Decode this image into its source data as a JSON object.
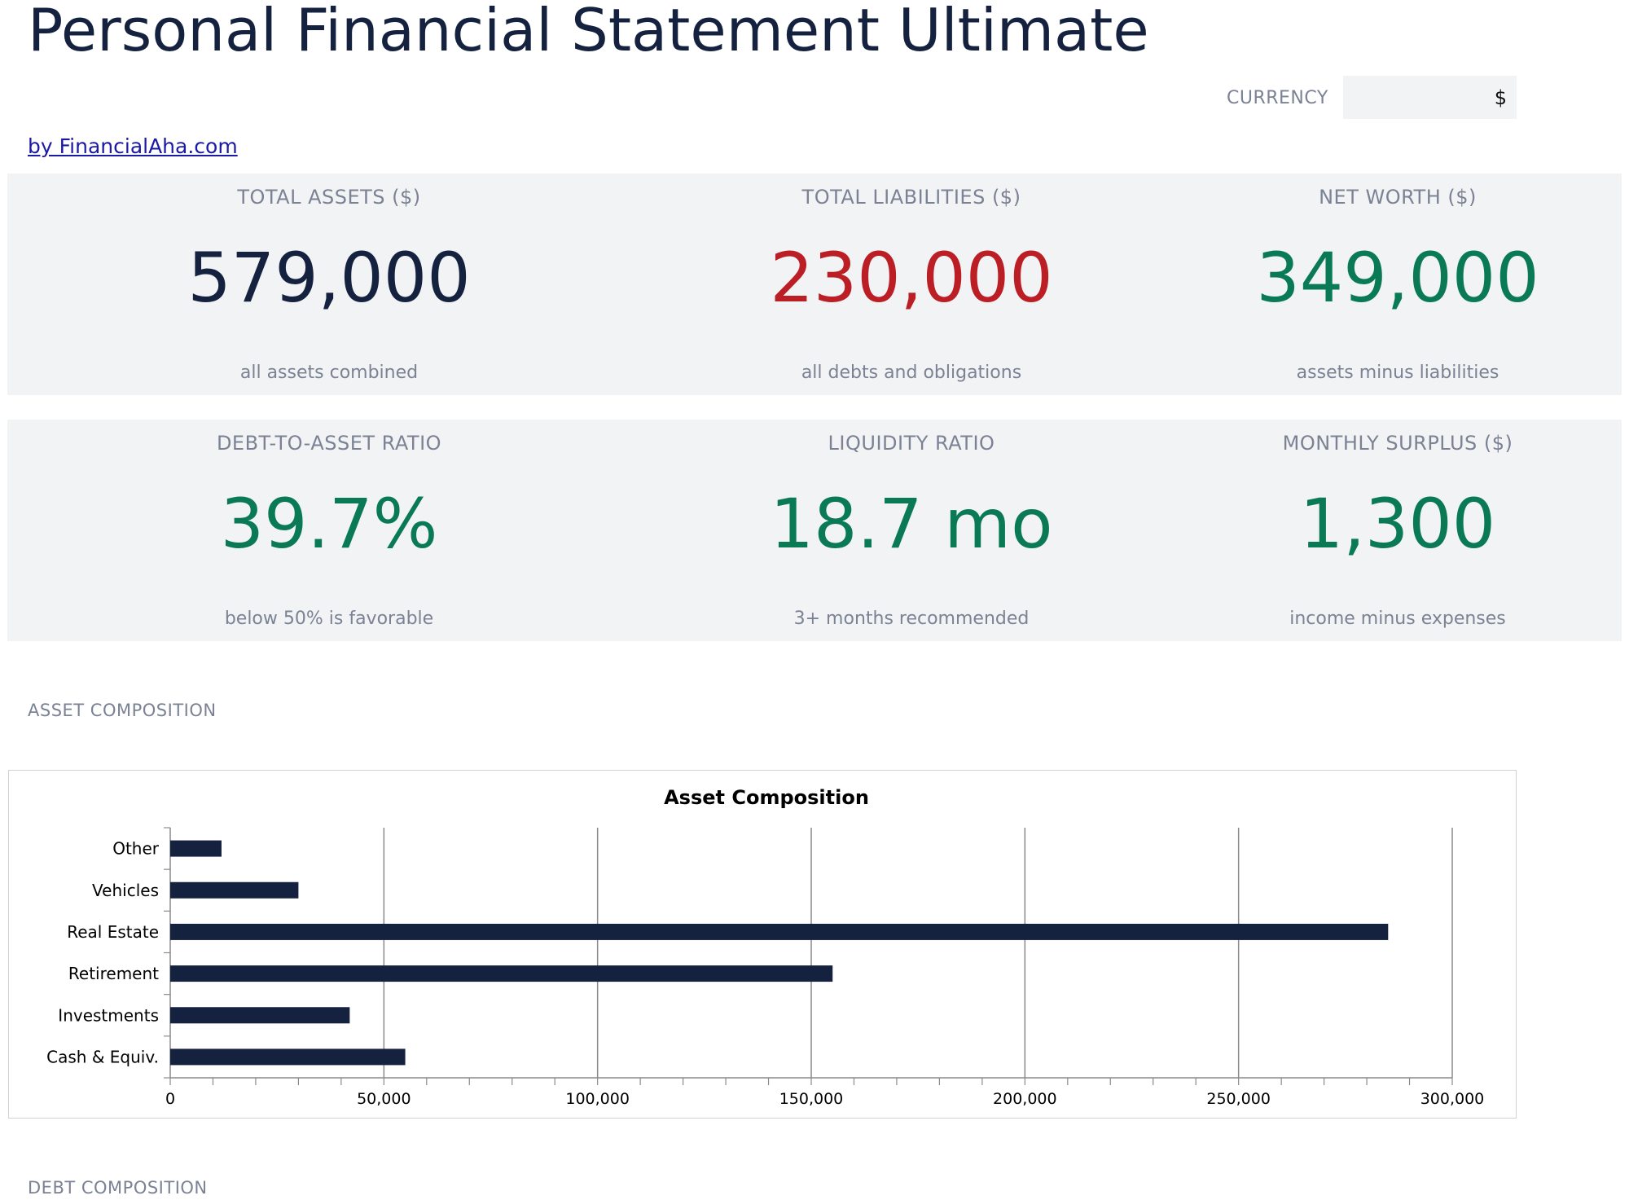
{
  "header": {
    "title": "Personal Financial Statement Ultimate",
    "byline": "by FinancialAha.com",
    "currency_label": "CURRENCY",
    "currency_value": "$"
  },
  "kpis_row1": [
    {
      "label": "TOTAL ASSETS ($)",
      "value": "579,000",
      "sub": "all assets combined",
      "color": "#15223f"
    },
    {
      "label": "TOTAL LIABILITIES ($)",
      "value": "230,000",
      "sub": "all debts and obligations",
      "color": "#bb1e24"
    },
    {
      "label": "NET WORTH ($)",
      "value": "349,000",
      "sub": "assets minus liabilities",
      "color": "#0a7a55"
    }
  ],
  "kpis_row2": [
    {
      "label": "DEBT-TO-ASSET RATIO",
      "value": "39.7%",
      "sub": "below 50% is favorable",
      "color": "#0a7a55"
    },
    {
      "label": "LIQUIDITY RATIO",
      "value": "18.7 mo",
      "sub": "3+ months recommended",
      "color": "#0a7a55"
    },
    {
      "label": "MONTHLY SURPLUS ($)",
      "value": "1,300",
      "sub": "income minus expenses",
      "color": "#0a7a55"
    }
  ],
  "sections": {
    "asset_composition": "ASSET COMPOSITION",
    "debt_composition": "DEBT COMPOSITION"
  },
  "chart_data": {
    "type": "bar",
    "orientation": "horizontal",
    "title": "Asset Composition",
    "categories": [
      "Other",
      "Vehicles",
      "Real Estate",
      "Retirement",
      "Investments",
      "Cash & Equiv."
    ],
    "values": [
      12000,
      30000,
      285000,
      155000,
      42000,
      55000
    ],
    "xlim": [
      0,
      300000
    ],
    "x_ticks": [
      "0",
      "50,000",
      "100,000",
      "150,000",
      "200,000",
      "250,000",
      "300,000"
    ],
    "grid": true,
    "bar_color": "#15223f"
  }
}
